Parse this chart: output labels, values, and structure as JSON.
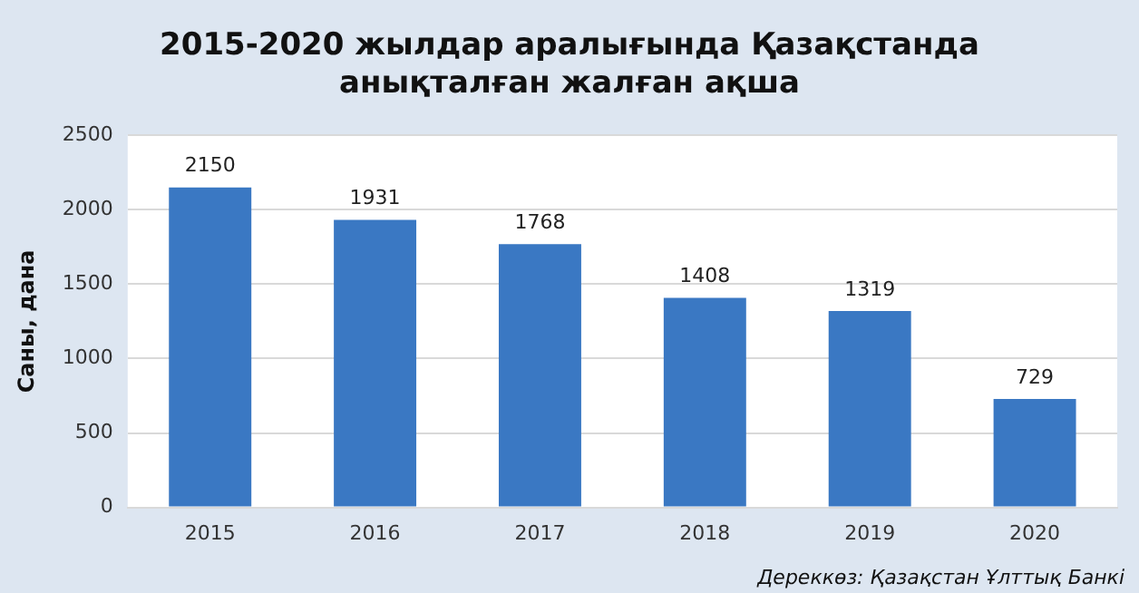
{
  "chart_data": {
    "type": "bar",
    "title": "2015-2020 жылдар аралығында Қазақстанда анықталған жалған ақша",
    "ylabel": "Саны, дана",
    "categories": [
      "2015",
      "2016",
      "2017",
      "2018",
      "2019",
      "2020"
    ],
    "values": [
      2150,
      1931,
      1768,
      1408,
      1319,
      729
    ],
    "color": "#3a78c3",
    "ylim": [
      0,
      2500
    ],
    "yticks": [
      0,
      500,
      1000,
      1500,
      2000,
      2500
    ],
    "grid": "y",
    "data_labels": true,
    "legend": false,
    "annotations": [
      "Дереккөз: Қазақстан Ұлттық Банкі"
    ]
  }
}
